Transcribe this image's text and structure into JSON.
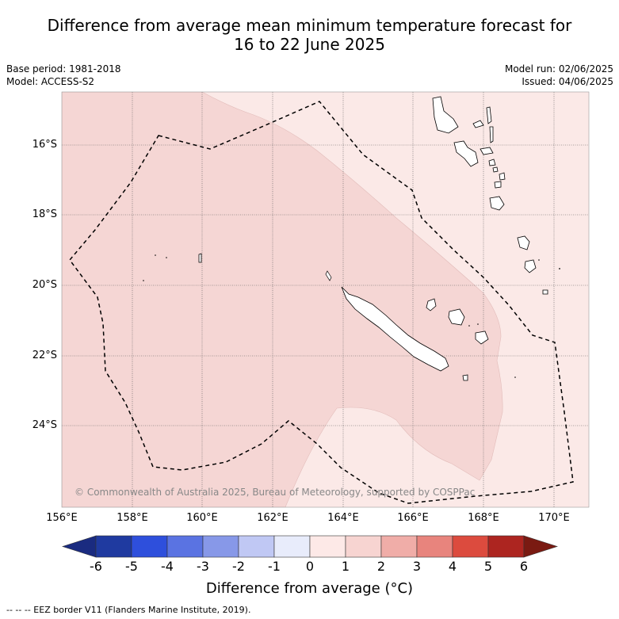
{
  "title": {
    "line1": "Difference from average mean minimum temperature forecast for",
    "line2": "16 to 22 June 2025"
  },
  "meta": {
    "base_period": "Base period: 1981-2018",
    "model": "Model: ACCESS-S2",
    "model_run": "Model run: 02/06/2025",
    "issued": "Issued: 04/06/2025"
  },
  "map": {
    "lon_labels": [
      "156°E",
      "158°E",
      "160°E",
      "162°E",
      "164°E",
      "166°E",
      "168°E",
      "170°E"
    ],
    "lat_labels": [
      "16°S",
      "18°S",
      "20°S",
      "22°S",
      "24°S"
    ],
    "copyright": "© Commonwealth of Australia 2025, Bureau of Meteorology, supported by COSPPac",
    "colors": {
      "light_anomaly": "#fbe9e7",
      "anomaly_1_2": "#f5d6d4",
      "boundary": "#000000"
    }
  },
  "colorbar": {
    "ticks": [
      "-6",
      "-5",
      "-4",
      "-3",
      "-2",
      "-1",
      "0",
      "1",
      "2",
      "3",
      "4",
      "5",
      "6"
    ],
    "colors": [
      "#1f3aa0",
      "#2e4fdc",
      "#5a73e2",
      "#8798e8",
      "#c0c8f4",
      "#e8ecfb",
      "#fde9e7",
      "#f7d4d1",
      "#f0ada8",
      "#e8847d",
      "#dc4b3e",
      "#ad2520"
    ],
    "low_extend": "#1a2b80",
    "high_extend": "#7a1a12",
    "label": "Difference from average (°C)"
  },
  "footnote": "--  --  -- EEZ border V11 (Flanders Marine Institute, 2019)."
}
